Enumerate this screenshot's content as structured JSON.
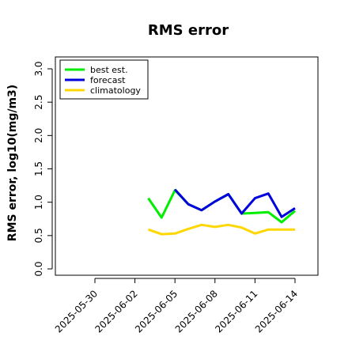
{
  "chart_data": {
    "type": "line",
    "title": "RMS error",
    "xlabel": "",
    "ylabel": "RMS error, log10(mg/m3)",
    "ylim": [
      0.0,
      3.0
    ],
    "yticks": [
      "0.0",
      "0.5",
      "1.0",
      "1.5",
      "2.0",
      "2.5",
      "3.0"
    ],
    "grid": false,
    "legend_position": "top-left",
    "x_ticks": [
      {
        "label": "2025-05-30",
        "date": "2025-05-30",
        "color": "#000000"
      },
      {
        "label": "2025-06-02",
        "date": "2025-06-02",
        "color": "#000000"
      },
      {
        "label": "2025-06-05",
        "date": "2025-06-05",
        "color": "#228b22"
      },
      {
        "label": "2025-06-08",
        "date": "2025-06-08",
        "color": "#000000"
      },
      {
        "label": "2025-06-11",
        "date": "2025-06-11",
        "color": "#000000"
      },
      {
        "label": "2025-06-14",
        "date": "2025-06-14",
        "color": "#000000"
      }
    ],
    "x_dates": [
      "2025-06-03",
      "2025-06-04",
      "2025-06-05",
      "2025-06-06",
      "2025-06-07",
      "2025-06-08",
      "2025-06-09",
      "2025-06-10",
      "2025-06-11",
      "2025-06-12",
      "2025-06-13",
      "2025-06-14"
    ],
    "series": [
      {
        "name": "best est.",
        "color": "#00ee00",
        "values": [
          1.06,
          0.77,
          1.18,
          0.97,
          0.88,
          1.01,
          1.12,
          0.83,
          0.84,
          0.85,
          0.7,
          0.87
        ]
      },
      {
        "name": "forecast",
        "color": "#0000dd",
        "values": [
          null,
          null,
          1.19,
          0.97,
          0.88,
          1.01,
          1.12,
          0.83,
          1.06,
          1.13,
          0.78,
          0.91
        ]
      },
      {
        "name": "climatology",
        "color": "#ffd700",
        "values": [
          0.59,
          0.52,
          0.53,
          0.6,
          0.66,
          0.63,
          0.66,
          0.62,
          0.53,
          0.59,
          0.59,
          0.59
        ]
      }
    ]
  }
}
